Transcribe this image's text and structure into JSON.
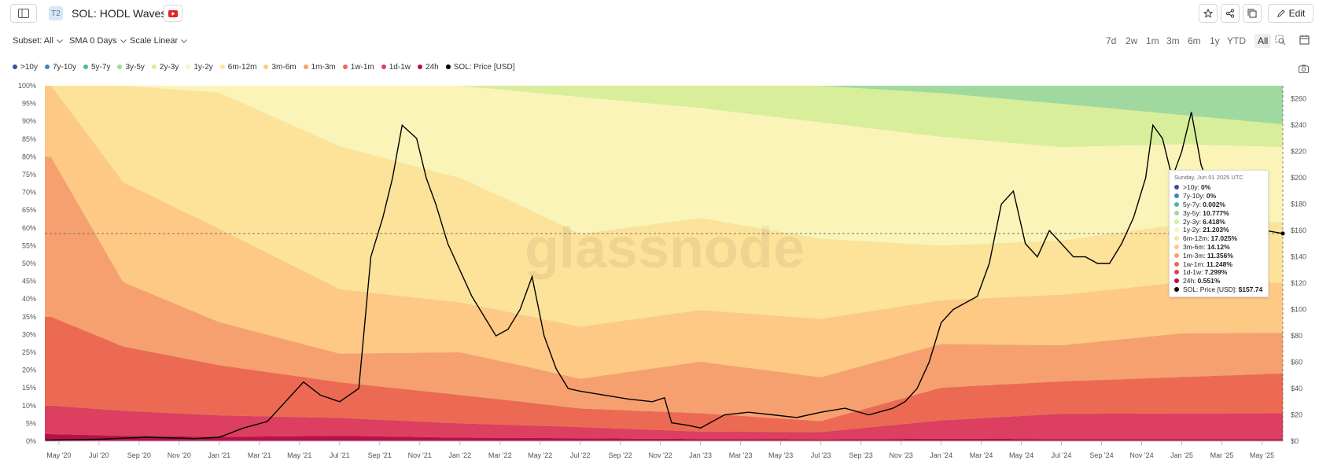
{
  "header": {
    "tier": "T2",
    "title": "SOL: HODL Waves",
    "edit_label": "Edit"
  },
  "controls": {
    "subset": "Subset: All",
    "sma": "SMA 0 Days",
    "scale": "Scale Linear",
    "ranges": [
      "7d",
      "2w",
      "1m",
      "3m",
      "6m",
      "1y",
      "YTD",
      "All"
    ],
    "active_range": "All"
  },
  "colors": {
    ">10y": "#3b4e9e",
    "7y-10y": "#3f86c4",
    "5y-7y": "#4bb8aa",
    "3y-5y": "#9fd99f",
    "2y-3y": "#d8ee9a",
    "1y-2y": "#fbf4b8",
    "6m-12m": "#fde29a",
    "3m-6m": "#fdc985",
    "1m-3m": "#f6a070",
    "1w-1m": "#ec6a53",
    "1d-1w": "#dc3f5f",
    "24h": "#b8104a",
    "price": "#000000"
  },
  "chart_data": {
    "type": "area",
    "title": "SOL: HODL Waves",
    "watermark": "glassnode",
    "x_ticks": [
      "May '20",
      "Jul '20",
      "Sep '20",
      "Nov '20",
      "Jan '21",
      "Mar '21",
      "May '21",
      "Jul '21",
      "Sep '21",
      "Nov '21",
      "Jan '22",
      "Mar '22",
      "May '22",
      "Jul '22",
      "Sep '22",
      "Nov '22",
      "Jan '23",
      "Mar '23",
      "May '23",
      "Jul '23",
      "Sep '23",
      "Nov '23",
      "Jan '24",
      "Mar '24",
      "May '24",
      "Jul '24",
      "Sep '24",
      "Nov '24",
      "Jan '25",
      "Mar '25",
      "May '25"
    ],
    "y_left_ticks": [
      "0%",
      "5%",
      "10%",
      "15%",
      "20%",
      "25%",
      "30%",
      "35%",
      "40%",
      "45%",
      "50%",
      "55%",
      "60%",
      "65%",
      "70%",
      "75%",
      "80%",
      "85%",
      "90%",
      "95%",
      "100%"
    ],
    "y_right_ticks": [
      "$0",
      "$20",
      "$40",
      "$60",
      "$80",
      "$100",
      "$120",
      "$140",
      "$160",
      "$180",
      "$200",
      "$220",
      "$240",
      "$260"
    ],
    "y_left_range": [
      0,
      100
    ],
    "y_right_range": [
      0,
      270
    ],
    "x_range": [
      "2020-04-10",
      "2025-06-01"
    ],
    "series": [
      {
        "name": "24h",
        "x": [
          2020.3,
          2020.6,
          2021.0,
          2021.5,
          2022.0,
          2022.5,
          2023.0,
          2023.5,
          2024.0,
          2024.5,
          2025.0,
          2025.42
        ],
        "y": [
          2,
          1.5,
          1.2,
          1.5,
          1.0,
          0.8,
          0.6,
          0.5,
          0.7,
          0.6,
          0.6,
          0.55
        ]
      },
      {
        "name": "1d-1w",
        "x": [
          2020.3,
          2020.6,
          2021.0,
          2021.5,
          2022.0,
          2022.5,
          2023.0,
          2023.5,
          2024.0,
          2024.5,
          2025.0,
          2025.42
        ],
        "y": [
          8,
          7,
          6,
          5,
          4,
          3,
          2,
          2,
          5,
          7,
          7,
          7.3
        ]
      },
      {
        "name": "1w-1m",
        "x": [
          2020.3,
          2020.6,
          2021.0,
          2021.5,
          2022.0,
          2022.5,
          2023.0,
          2023.5,
          2024.0,
          2024.5,
          2025.0,
          2025.42
        ],
        "y": [
          25,
          18,
          14,
          10,
          8,
          5,
          5,
          3,
          9,
          9,
          10,
          11.2
        ]
      },
      {
        "name": "1m-3m",
        "x": [
          2020.3,
          2020.6,
          2021.0,
          2021.5,
          2022.0,
          2022.5,
          2023.0,
          2023.5,
          2024.0,
          2024.5,
          2025.0,
          2025.42
        ],
        "y": [
          45,
          18,
          12,
          8,
          12,
          8,
          14,
          12,
          12,
          10,
          12,
          11.4
        ]
      },
      {
        "name": "3m-6m",
        "x": [
          2020.3,
          2020.6,
          2021.0,
          2021.5,
          2022.0,
          2022.5,
          2023.0,
          2023.5,
          2024.0,
          2024.5,
          2025.0,
          2025.42
        ],
        "y": [
          20,
          28,
          26,
          18,
          14,
          14,
          14,
          16,
          12,
          14,
          14,
          14.1
        ]
      },
      {
        "name": "6m-12m",
        "x": [
          2020.3,
          2020.6,
          2021.0,
          2021.5,
          2022.0,
          2022.5,
          2023.0,
          2023.5,
          2024.0,
          2024.5,
          2025.0,
          2025.42
        ],
        "y": [
          0,
          27,
          38,
          40,
          35,
          25,
          25,
          22,
          15,
          15,
          16,
          17.0
        ]
      },
      {
        "name": "1y-2y",
        "x": [
          2020.3,
          2020.6,
          2021.0,
          2021.5,
          2022.0,
          2022.5,
          2023.0,
          2023.5,
          2024.0,
          2024.5,
          2025.0,
          2025.42
        ],
        "y": [
          0,
          0,
          2,
          17,
          26,
          37,
          30,
          32,
          30,
          26,
          22,
          21.2
        ]
      },
      {
        "name": "2y-3y",
        "x": [
          2020.3,
          2020.6,
          2021.0,
          2021.5,
          2022.0,
          2022.5,
          2023.0,
          2023.5,
          2024.0,
          2024.5,
          2025.0,
          2025.42
        ],
        "y": [
          0,
          0,
          0,
          0,
          0,
          3,
          6,
          10,
          12,
          12,
          8,
          6.4
        ]
      },
      {
        "name": "3y-5y",
        "x": [
          2020.3,
          2020.6,
          2021.0,
          2021.5,
          2022.0,
          2022.5,
          2023.0,
          2023.5,
          2024.0,
          2024.5,
          2025.0,
          2025.42
        ],
        "y": [
          0,
          0,
          0,
          0,
          0,
          0,
          0,
          0,
          2,
          5,
          8,
          10.8
        ]
      },
      {
        "name": "5y-7y",
        "x": [
          2020.3,
          2025.42
        ],
        "y": [
          0,
          0.002
        ]
      },
      {
        "name": "7y-10y",
        "x": [
          2020.3,
          2025.42
        ],
        "y": [
          0,
          0
        ]
      },
      {
        "name": ">10y",
        "x": [
          2020.3,
          2025.42
        ],
        "y": [
          0,
          0
        ]
      }
    ],
    "price_series": {
      "name": "SOL: Price [USD]",
      "x": [
        2020.28,
        2020.5,
        2020.7,
        2020.9,
        2021.0,
        2021.1,
        2021.2,
        2021.3,
        2021.35,
        2021.42,
        2021.5,
        2021.58,
        2021.63,
        2021.68,
        2021.72,
        2021.76,
        2021.82,
        2021.86,
        2021.9,
        2021.95,
        2022.0,
        2022.05,
        2022.1,
        2022.15,
        2022.2,
        2022.25,
        2022.3,
        2022.35,
        2022.4,
        2022.45,
        2022.5,
        2022.6,
        2022.7,
        2022.8,
        2022.85,
        2022.88,
        2022.95,
        2023.0,
        2023.1,
        2023.2,
        2023.3,
        2023.4,
        2023.5,
        2023.6,
        2023.7,
        2023.8,
        2023.85,
        2023.9,
        2023.95,
        2024.0,
        2024.05,
        2024.1,
        2024.15,
        2024.2,
        2024.25,
        2024.3,
        2024.35,
        2024.4,
        2024.45,
        2024.5,
        2024.55,
        2024.6,
        2024.65,
        2024.7,
        2024.75,
        2024.8,
        2024.85,
        2024.88,
        2024.92,
        2024.96,
        2025.0,
        2025.04,
        2025.08,
        2025.12,
        2025.16,
        2025.2,
        2025.25,
        2025.3,
        2025.35,
        2025.42
      ],
      "y": [
        0.7,
        1.5,
        3,
        2,
        3,
        10,
        15,
        35,
        45,
        35,
        30,
        40,
        140,
        170,
        200,
        240,
        230,
        200,
        180,
        150,
        130,
        110,
        95,
        80,
        85,
        100,
        125,
        80,
        55,
        40,
        38,
        35,
        32,
        30,
        33,
        14,
        12,
        10,
        20,
        22,
        20,
        18,
        22,
        25,
        20,
        25,
        30,
        40,
        60,
        90,
        100,
        105,
        110,
        135,
        180,
        190,
        150,
        140,
        160,
        150,
        140,
        140,
        135,
        135,
        150,
        170,
        200,
        240,
        230,
        200,
        220,
        250,
        210,
        190,
        170,
        140,
        130,
        140,
        160,
        157.74
      ]
    }
  },
  "tooltip": {
    "date": "Sunday, Jun 01 2025 UTC",
    "rows": [
      {
        "label": ">10y:",
        "value": "0%",
        "color": "#3b4e9e"
      },
      {
        "label": "7y-10y:",
        "value": "0%",
        "color": "#3f86c4"
      },
      {
        "label": "5y-7y:",
        "value": "0.002%",
        "color": "#4bb8aa"
      },
      {
        "label": "3y-5y:",
        "value": "10.777%",
        "color": "#9fd99f"
      },
      {
        "label": "2y-3y:",
        "value": "6.418%",
        "color": "#d8ee9a"
      },
      {
        "label": "1y-2y:",
        "value": "21.203%",
        "color": "#fbf4b8"
      },
      {
        "label": "6m-12m:",
        "value": "17.025%",
        "color": "#fde29a"
      },
      {
        "label": "3m-6m:",
        "value": "14.12%",
        "color": "#fdc985"
      },
      {
        "label": "1m-3m:",
        "value": "11.356%",
        "color": "#f6a070"
      },
      {
        "label": "1w-1m:",
        "value": "11.248%",
        "color": "#ec6a53"
      },
      {
        "label": "1d-1w:",
        "value": "7.299%",
        "color": "#dc3f5f"
      },
      {
        "label": "24h:",
        "value": "0.551%",
        "color": "#b8104a"
      },
      {
        "label": "SOL: Price [USD]:",
        "value": "$157.74",
        "color": "#000000"
      }
    ]
  }
}
